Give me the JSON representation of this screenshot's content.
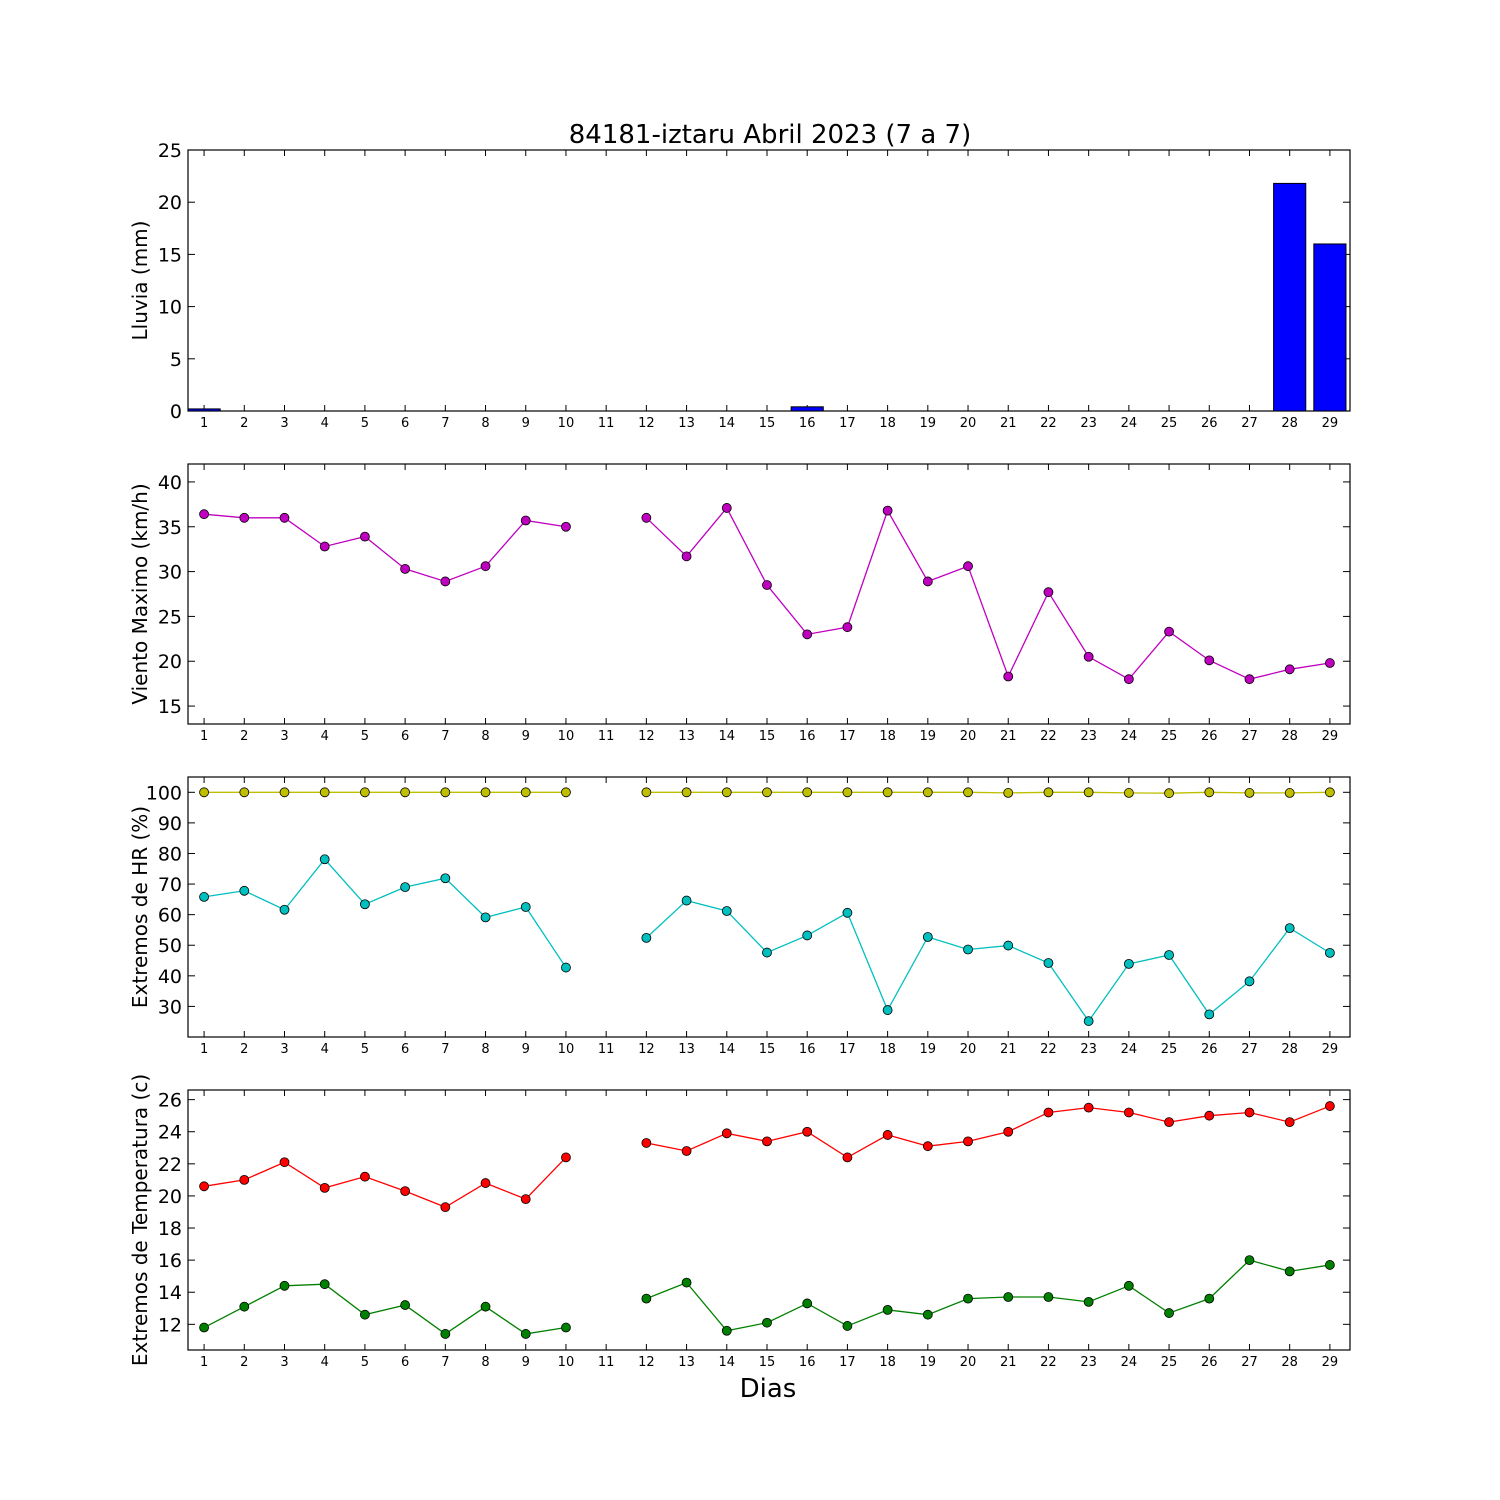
{
  "title": "84181-iztaru Abril 2023  (7 a 7)",
  "xlabel": "Dias",
  "colors": {
    "rain": "#0000ff",
    "wind": "#bf00bf",
    "hr_max": "#bfbf00",
    "hr_min": "#00bfbf",
    "temp_max": "#ff0000",
    "temp_min": "#008000"
  },
  "chart_data": [
    {
      "type": "bar",
      "ylabel": "Lluvia (mm)",
      "ylim": [
        0,
        25
      ],
      "yticks": [
        0,
        5,
        10,
        15,
        20,
        25
      ],
      "x": [
        1,
        2,
        3,
        4,
        5,
        6,
        7,
        8,
        9,
        10,
        11,
        12,
        13,
        14,
        15,
        16,
        17,
        18,
        19,
        20,
        21,
        22,
        23,
        24,
        25,
        26,
        27,
        28,
        29
      ],
      "series": [
        {
          "values": [
            0.2,
            0,
            0,
            0,
            0,
            0,
            0,
            0,
            0,
            0,
            null,
            0,
            0,
            0,
            0,
            0.4,
            0,
            0,
            0,
            0,
            0,
            0,
            0,
            0,
            0,
            0,
            0,
            21.8,
            16.0
          ]
        }
      ]
    },
    {
      "type": "line",
      "ylabel": "Viento Maximo (km/h)",
      "ylim": [
        13,
        42
      ],
      "yticks": [
        15,
        20,
        25,
        30,
        35,
        40
      ],
      "x": [
        1,
        2,
        3,
        4,
        5,
        6,
        7,
        8,
        9,
        10,
        11,
        12,
        13,
        14,
        15,
        16,
        17,
        18,
        19,
        20,
        21,
        22,
        23,
        24,
        25,
        26,
        27,
        28,
        29
      ],
      "series": [
        {
          "values": [
            36.4,
            36.0,
            36.0,
            32.8,
            33.9,
            30.3,
            28.9,
            30.6,
            35.7,
            35.0,
            null,
            36.0,
            31.7,
            37.1,
            28.5,
            23.0,
            23.8,
            36.8,
            28.9,
            30.6,
            18.3,
            27.7,
            20.5,
            18.0,
            23.3,
            20.1,
            18.0,
            19.1,
            19.8
          ]
        }
      ]
    },
    {
      "type": "line",
      "ylabel": "Extremos de HR (%)",
      "ylim": [
        20,
        105
      ],
      "yticks": [
        30,
        40,
        50,
        60,
        70,
        80,
        90,
        100
      ],
      "x": [
        1,
        2,
        3,
        4,
        5,
        6,
        7,
        8,
        9,
        10,
        11,
        12,
        13,
        14,
        15,
        16,
        17,
        18,
        19,
        20,
        21,
        22,
        23,
        24,
        25,
        26,
        27,
        28,
        29
      ],
      "series": [
        {
          "values": [
            100,
            100,
            100,
            100,
            100,
            100,
            100,
            100,
            100,
            100,
            null,
            100,
            100,
            100,
            100,
            100,
            100,
            100,
            100,
            100,
            99.8,
            100,
            100,
            99.8,
            99.7,
            100,
            99.8,
            99.8,
            100
          ]
        },
        {
          "values": [
            65.8,
            67.8,
            61.6,
            78.1,
            63.4,
            69.0,
            71.9,
            59.1,
            62.5,
            42.7,
            null,
            52.4,
            64.6,
            61.2,
            47.6,
            53.2,
            60.6,
            28.8,
            52.7,
            48.6,
            49.9,
            44.2,
            25.2,
            43.9,
            46.8,
            27.4,
            38.2,
            55.6,
            47.5
          ]
        }
      ]
    },
    {
      "type": "line",
      "ylabel": "Extremos de Temperatura (c)",
      "ylim": [
        10.4,
        26.6
      ],
      "yticks": [
        12,
        14,
        16,
        18,
        20,
        22,
        24,
        26
      ],
      "x": [
        1,
        2,
        3,
        4,
        5,
        6,
        7,
        8,
        9,
        10,
        11,
        12,
        13,
        14,
        15,
        16,
        17,
        18,
        19,
        20,
        21,
        22,
        23,
        24,
        25,
        26,
        27,
        28,
        29
      ],
      "series": [
        {
          "values": [
            20.6,
            21.0,
            22.1,
            20.5,
            21.2,
            20.3,
            19.3,
            20.8,
            19.8,
            22.4,
            null,
            23.3,
            22.8,
            23.9,
            23.4,
            24.0,
            22.4,
            23.8,
            23.1,
            23.4,
            24.0,
            25.2,
            25.5,
            25.2,
            24.6,
            25.0,
            25.2,
            24.6,
            25.6
          ]
        },
        {
          "values": [
            11.8,
            13.1,
            14.4,
            14.5,
            12.6,
            13.2,
            11.4,
            13.1,
            11.4,
            11.8,
            null,
            13.6,
            14.6,
            11.6,
            12.1,
            13.3,
            11.9,
            12.9,
            12.6,
            13.6,
            13.7,
            13.7,
            13.4,
            14.4,
            12.7,
            13.6,
            16.0,
            15.3,
            15.7
          ]
        }
      ]
    }
  ]
}
